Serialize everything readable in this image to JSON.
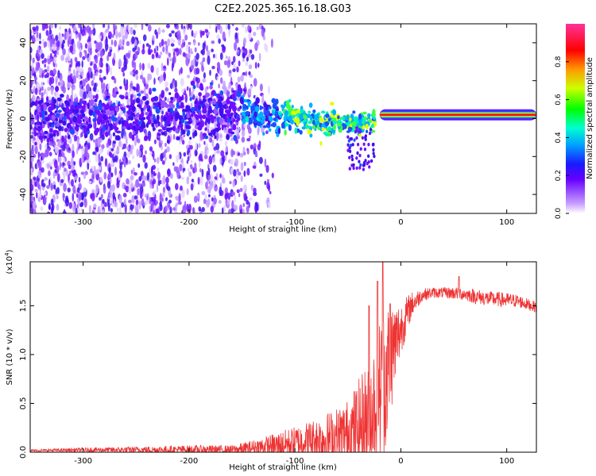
{
  "title": "C2E2.2025.365.16.18.G03",
  "colors": {
    "line": "#ee3333",
    "cmap": [
      "#f2f2f2",
      "#7b00ff",
      "#3300ff",
      "#00a0ff",
      "#00ffd0",
      "#00ff00",
      "#ffff00",
      "#ff8000",
      "#ff0000",
      "#ff3399"
    ]
  },
  "chart_data": [
    {
      "type": "heatmap",
      "name": "spectrogram",
      "xlabel": "Height of straight line (km)",
      "ylabel": "Frequency (Hz)",
      "xlim": [
        -350,
        128
      ],
      "ylim": [
        -50,
        50
      ],
      "x_ticks": [
        -300,
        -200,
        -100,
        0,
        100
      ],
      "x_tick_labels": [
        "-300",
        "-200",
        "-100",
        "0",
        "100"
      ],
      "y_ticks": [
        -40,
        -20,
        0,
        20,
        40
      ],
      "y_tick_labels": [
        "-40",
        "-20",
        "0",
        "20",
        "40"
      ],
      "colorbar": {
        "label": "Normalized spectral amplitude",
        "range": [
          0,
          1
        ],
        "ticks": [
          0.0,
          0.2,
          0.4,
          0.6,
          0.8
        ],
        "tick_labels": [
          "0.0",
          "0.2",
          "0.4",
          "0.6",
          "0.8"
        ]
      },
      "ridge": [
        [
          -350,
          0
        ],
        [
          -250,
          2
        ],
        [
          -150,
          4
        ],
        [
          -100,
          0
        ],
        [
          -80,
          -2
        ],
        [
          -60,
          -2
        ],
        [
          -40,
          -3
        ],
        [
          -25,
          -1
        ],
        [
          -20,
          1
        ],
        [
          0,
          2
        ],
        [
          20,
          2
        ],
        [
          60,
          2
        ],
        [
          100,
          1
        ],
        [
          128,
          1
        ]
      ],
      "max_amplitude_region_km": [
        -20,
        128
      ]
    },
    {
      "type": "line",
      "name": "snr",
      "xlabel": "Height of straight line (km)",
      "ylabel": "SNR (10 * v/v)",
      "y_scale_label": "(x10",
      "y_scale_exp": "4",
      "xlim": [
        -350,
        128
      ],
      "ylim": [
        0,
        1.95
      ],
      "x_ticks": [
        -300,
        -200,
        -100,
        0,
        100
      ],
      "x_tick_labels": [
        "-300",
        "-200",
        "-100",
        "0",
        "100"
      ],
      "y_ticks": [
        0,
        0.5,
        1.0,
        1.5
      ],
      "y_tick_labels": [
        "0.0",
        "0.5",
        "1.0",
        "1.5"
      ],
      "envelope_x": [
        -350,
        -300,
        -200,
        -160,
        -150,
        -140,
        -120,
        -100,
        -80,
        -60,
        -50,
        -40,
        -30,
        -25,
        -20,
        -15,
        -10,
        -5,
        0,
        10,
        20,
        30,
        40,
        50,
        60,
        70,
        80,
        100,
        110,
        128
      ],
      "envelope_y": [
        0.02,
        0.03,
        0.04,
        0.04,
        0.05,
        0.07,
        0.1,
        0.15,
        0.2,
        0.25,
        0.3,
        0.4,
        0.55,
        0.7,
        0.85,
        1.0,
        1.15,
        1.25,
        1.35,
        1.55,
        1.63,
        1.65,
        1.65,
        1.65,
        1.64,
        1.62,
        1.6,
        1.58,
        1.57,
        1.5
      ],
      "noise_y": [
        0.01,
        0.02,
        0.04,
        0.04,
        0.06,
        0.07,
        0.12,
        0.15,
        0.2,
        0.28,
        0.32,
        0.45,
        0.55,
        0.6,
        0.7,
        0.72,
        0.55,
        0.4,
        0.25,
        0.12,
        0.06,
        0.05,
        0.05,
        0.06,
        0.06,
        0.07,
        0.07,
        0.07,
        0.06,
        0.05
      ],
      "peaks": [
        [
          -22,
          1.75
        ],
        [
          -17,
          1.95
        ],
        [
          -30,
          1.5
        ],
        [
          -10,
          1.52
        ],
        [
          55,
          1.8
        ]
      ]
    }
  ]
}
